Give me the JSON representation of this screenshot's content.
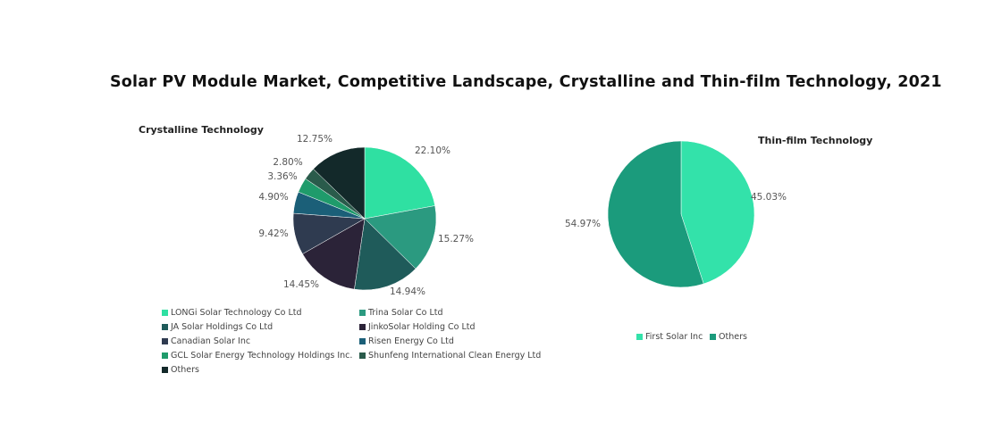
{
  "title": "Solar PV Module Market, Competitive Landscape, Crystalline and Thin-film Technology, 2021",
  "chart_data": [
    {
      "type": "pie",
      "title": "Crystalline Technology",
      "categories": [
        "LONGi Solar Technology Co Ltd",
        "Trina Solar Co Ltd",
        "JA Solar Holdings Co Ltd",
        "JinkoSolar Holding Co Ltd",
        "Canadian Solar Inc",
        "Risen Energy Co Ltd",
        "GCL Solar Energy Technology Holdings Inc.",
        "Shunfeng International Clean Energy Ltd",
        "Others"
      ],
      "values": [
        22.1,
        15.27,
        14.94,
        14.45,
        9.42,
        4.9,
        3.36,
        2.8,
        12.75
      ],
      "labels": [
        "22.10%",
        "15.27%",
        "14.94%",
        "14.45%",
        "9.42%",
        "4.90%",
        "3.36%",
        "2.80%",
        "12.75%"
      ],
      "colors": [
        "#2fe0a2",
        "#2b9a80",
        "#1f5b5a",
        "#2b2338",
        "#2f3b50",
        "#1b5f78",
        "#1f9b6b",
        "#2a5b4b",
        "#13292a"
      ],
      "legend_placement": "bottom"
    },
    {
      "type": "pie",
      "title": "Thin-film Technology",
      "categories": [
        "First Solar Inc",
        "Others"
      ],
      "values": [
        45.03,
        54.97
      ],
      "labels": [
        "45.03%",
        "54.97%"
      ],
      "colors": [
        "#33e2aa",
        "#1b9b7c"
      ],
      "legend_placement": "bottom"
    }
  ]
}
